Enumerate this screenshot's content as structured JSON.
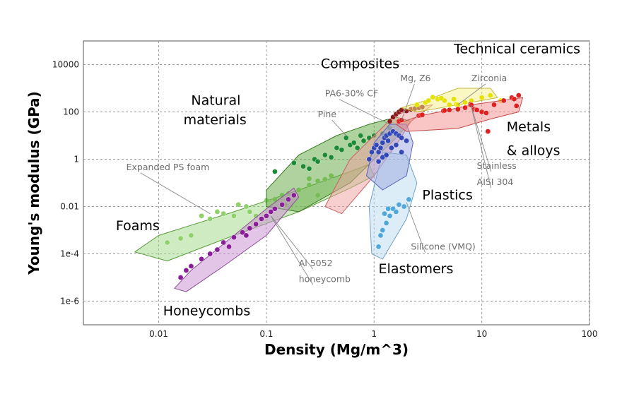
{
  "chart_data": {
    "type": "scatter",
    "xlabel": "Density (Mg/m^3)",
    "ylabel": "Young's modulus (GPa)",
    "x_scale": "log",
    "y_scale": "log",
    "xlim": [
      0.002,
      100
    ],
    "ylim": [
      1e-07,
      100000
    ],
    "grid": true,
    "x_ticks": [
      {
        "value": 0.01,
        "label": "0.01"
      },
      {
        "value": 0.1,
        "label": "0.1"
      },
      {
        "value": 1,
        "label": "1"
      },
      {
        "value": 10,
        "label": "10"
      },
      {
        "value": 100,
        "label": "100"
      }
    ],
    "y_ticks": [
      {
        "value": 10000,
        "label": "10000"
      },
      {
        "value": 100,
        "label": "100"
      },
      {
        "value": 1,
        "label": "1"
      },
      {
        "value": 0.01,
        "label": "0.01"
      },
      {
        "value": 0.0001,
        "label": "1e-4"
      },
      {
        "value": 1e-06,
        "label": "1e-6"
      }
    ],
    "families": [
      {
        "name": "Foams",
        "fill": "#9ed784",
        "stroke": "#5a9a3c",
        "point_color": "#8fd06b",
        "envelope": [
          [
            0.006,
            0.00012
          ],
          [
            0.01,
            0.0006
          ],
          [
            0.05,
            0.006
          ],
          [
            0.2,
            0.05
          ],
          [
            0.6,
            0.3
          ],
          [
            0.9,
            0.6
          ],
          [
            1.0,
            0.2
          ],
          [
            0.6,
            0.06
          ],
          [
            0.2,
            0.006
          ],
          [
            0.05,
            0.0006
          ],
          [
            0.012,
            5e-05
          ]
        ],
        "points": [
          [
            0.012,
            0.0003
          ],
          [
            0.016,
            0.00045
          ],
          [
            0.02,
            0.0006
          ],
          [
            0.025,
            0.004
          ],
          [
            0.03,
            0.003
          ],
          [
            0.035,
            0.006
          ],
          [
            0.04,
            0.005
          ],
          [
            0.05,
            0.004
          ],
          [
            0.055,
            0.012
          ],
          [
            0.065,
            0.01
          ],
          [
            0.07,
            0.006
          ],
          [
            0.08,
            0.004
          ],
          [
            0.09,
            0.003
          ],
          [
            0.1,
            0.018
          ],
          [
            0.12,
            0.02
          ],
          [
            0.14,
            0.03
          ],
          [
            0.16,
            0.035
          ],
          [
            0.2,
            0.05
          ],
          [
            0.25,
            0.08
          ],
          [
            0.3,
            0.12
          ],
          [
            0.35,
            0.14
          ],
          [
            0.4,
            0.2
          ],
          [
            0.25,
            0.15
          ],
          [
            0.15,
            0.012
          ],
          [
            0.3,
            0.03
          ]
        ]
      },
      {
        "name": "Natural materials",
        "fill": "#5ea83e",
        "stroke": "#3a7a25",
        "point_color": "#1c8a34",
        "envelope": [
          [
            0.1,
            0.05
          ],
          [
            0.2,
            1.5
          ],
          [
            0.45,
            10
          ],
          [
            0.9,
            30
          ],
          [
            1.6,
            60
          ],
          [
            2.2,
            40
          ],
          [
            1.6,
            8
          ],
          [
            1.0,
            1
          ],
          [
            0.6,
            0.1
          ],
          [
            0.2,
            0.006
          ],
          [
            0.1,
            0.01
          ]
        ],
        "points": [
          [
            0.12,
            0.3
          ],
          [
            0.18,
            0.7
          ],
          [
            0.22,
            0.5
          ],
          [
            0.28,
            1.0
          ],
          [
            0.35,
            1.5
          ],
          [
            0.4,
            1.2
          ],
          [
            0.45,
            3
          ],
          [
            0.5,
            2.5
          ],
          [
            0.6,
            4
          ],
          [
            0.65,
            5
          ],
          [
            0.7,
            3
          ],
          [
            0.8,
            6
          ],
          [
            0.9,
            8
          ],
          [
            1.0,
            10
          ],
          [
            1.2,
            12
          ],
          [
            1.4,
            20
          ],
          [
            0.3,
            0.8
          ],
          [
            0.25,
            0.4
          ],
          [
            0.55,
            8
          ],
          [
            0.75,
            10
          ]
        ]
      },
      {
        "name": "Composites",
        "fill": "#f2a0a0",
        "stroke": "#c76464",
        "point_color": "#8b1a1a",
        "envelope": [
          [
            0.35,
            0.01
          ],
          [
            0.6,
            1
          ],
          [
            1.0,
            10
          ],
          [
            1.5,
            60
          ],
          [
            2.3,
            150
          ],
          [
            3.5,
            200
          ],
          [
            2.2,
            40
          ],
          [
            1.6,
            4
          ],
          [
            1.0,
            0.2
          ],
          [
            0.5,
            0.005
          ]
        ],
        "points": [
          [
            1.4,
            40
          ],
          [
            1.5,
            60
          ],
          [
            1.6,
            80
          ],
          [
            1.7,
            100
          ],
          [
            1.8,
            120
          ],
          [
            2.0,
            110
          ],
          [
            2.2,
            130
          ],
          [
            2.4,
            140
          ],
          [
            2.6,
            150
          ],
          [
            2.8,
            160
          ]
        ]
      },
      {
        "name": "Honeycombs",
        "fill": "#c88bd0",
        "stroke": "#8c4f96",
        "point_color": "#8a1e99",
        "envelope": [
          [
            0.014,
            3.5e-06
          ],
          [
            0.02,
            2e-05
          ],
          [
            0.05,
            0.0006
          ],
          [
            0.1,
            0.008
          ],
          [
            0.18,
            0.06
          ],
          [
            0.2,
            0.025
          ],
          [
            0.1,
            0.0006
          ],
          [
            0.04,
            3e-05
          ],
          [
            0.018,
            2.5e-06
          ]
        ],
        "points": [
          [
            0.016,
            1e-05
          ],
          [
            0.018,
            2e-05
          ],
          [
            0.02,
            3e-05
          ],
          [
            0.025,
            6e-05
          ],
          [
            0.03,
            0.0001
          ],
          [
            0.035,
            0.00015
          ],
          [
            0.04,
            0.0003
          ],
          [
            0.05,
            0.0005
          ],
          [
            0.06,
            0.0008
          ],
          [
            0.07,
            0.0012
          ],
          [
            0.08,
            0.0018
          ],
          [
            0.09,
            0.003
          ],
          [
            0.1,
            0.004
          ],
          [
            0.12,
            0.008
          ],
          [
            0.14,
            0.012
          ],
          [
            0.16,
            0.02
          ],
          [
            0.18,
            0.03
          ],
          [
            0.045,
            0.0002
          ],
          [
            0.065,
            0.0006
          ],
          [
            0.11,
            0.006
          ]
        ]
      },
      {
        "name": "Elastomers",
        "fill": "#bcdcef",
        "stroke": "#6fa2c4",
        "point_color": "#4fa8d9",
        "envelope": [
          [
            0.95,
            0.0001
          ],
          [
            1.2,
            6e-05
          ],
          [
            2.0,
            0.003
          ],
          [
            2.5,
            0.1
          ],
          [
            2.0,
            1.5
          ],
          [
            1.2,
            2
          ],
          [
            0.9,
            0.01
          ]
        ],
        "points": [
          [
            1.1,
            0.0002
          ],
          [
            1.15,
            0.0006
          ],
          [
            1.2,
            0.001
          ],
          [
            1.3,
            0.002
          ],
          [
            1.4,
            0.004
          ],
          [
            1.5,
            0.008
          ],
          [
            1.6,
            0.006
          ],
          [
            1.7,
            0.012
          ],
          [
            1.9,
            0.01
          ],
          [
            2.1,
            0.02
          ],
          [
            1.25,
            0.005
          ],
          [
            1.35,
            0.008
          ]
        ]
      },
      {
        "name": "Plastics",
        "fill": "#9aa6e0",
        "stroke": "#5a68b8",
        "point_color": "#3346b8",
        "envelope": [
          [
            0.85,
            0.2
          ],
          [
            1.0,
            5
          ],
          [
            1.4,
            30
          ],
          [
            2.0,
            30
          ],
          [
            2.3,
            5
          ],
          [
            2.0,
            0.2
          ],
          [
            1.2,
            0.05
          ]
        ],
        "points": [
          [
            0.9,
            1
          ],
          [
            0.95,
            2
          ],
          [
            1.0,
            3
          ],
          [
            1.05,
            4
          ],
          [
            1.1,
            2
          ],
          [
            1.15,
            3
          ],
          [
            1.2,
            5
          ],
          [
            1.25,
            8
          ],
          [
            1.3,
            10
          ],
          [
            1.35,
            6
          ],
          [
            1.4,
            12
          ],
          [
            1.5,
            15
          ],
          [
            1.6,
            12
          ],
          [
            1.7,
            10
          ],
          [
            1.8,
            8
          ],
          [
            2.0,
            6
          ],
          [
            1.1,
            0.8
          ],
          [
            1.2,
            1.2
          ],
          [
            1.3,
            1.5
          ],
          [
            1.45,
            3
          ],
          [
            1.6,
            4
          ],
          [
            1.8,
            2
          ]
        ]
      },
      {
        "name": "Technical ceramics",
        "fill": "#f6ef88",
        "stroke": "#c4b83e",
        "point_color": "#e5e200",
        "envelope": [
          [
            1.8,
            150
          ],
          [
            3.0,
            300
          ],
          [
            6.0,
            1000
          ],
          [
            12,
            1000
          ],
          [
            14,
            400
          ],
          [
            6,
            200
          ],
          [
            2.5,
            100
          ]
        ],
        "points": [
          [
            2.5,
            200
          ],
          [
            3.0,
            250
          ],
          [
            3.2,
            300
          ],
          [
            3.9,
            350
          ],
          [
            4.5,
            300
          ],
          [
            5.0,
            200
          ],
          [
            5.8,
            210
          ],
          [
            6.0,
            200
          ],
          [
            7.0,
            250
          ],
          [
            8.0,
            300
          ],
          [
            10,
            400
          ],
          [
            12,
            500
          ],
          [
            15,
            300
          ],
          [
            3.5,
            420
          ],
          [
            4.2,
            380
          ],
          [
            5.5,
            350
          ]
        ]
      },
      {
        "name": "Metals & alloys",
        "fill": "#f38c8c",
        "stroke": "#c34848",
        "point_color": "#e02020",
        "envelope": [
          [
            1.6,
            30
          ],
          [
            2.7,
            70
          ],
          [
            4.5,
            110
          ],
          [
            8,
            200
          ],
          [
            15,
            300
          ],
          [
            24,
            400
          ],
          [
            22,
            100
          ],
          [
            12,
            50
          ],
          [
            6,
            20
          ],
          [
            2,
            15
          ]
        ],
        "points": [
          [
            1.7,
            40
          ],
          [
            1.8,
            45
          ],
          [
            2.6,
            70
          ],
          [
            2.7,
            72
          ],
          [
            2.8,
            75
          ],
          [
            4.4,
            110
          ],
          [
            4.5,
            115
          ],
          [
            5.0,
            120
          ],
          [
            6.0,
            130
          ],
          [
            7.0,
            150
          ],
          [
            7.8,
            200
          ],
          [
            7.9,
            210
          ],
          [
            8.0,
            195
          ],
          [
            8.5,
            130
          ],
          [
            8.9,
            125
          ],
          [
            9.0,
            120
          ],
          [
            10,
            100
          ],
          [
            11,
            90
          ],
          [
            11.4,
            15
          ],
          [
            13,
            200
          ],
          [
            16,
            300
          ],
          [
            19,
            400
          ],
          [
            20,
            350
          ],
          [
            21,
            180
          ],
          [
            22,
            500
          ]
        ]
      }
    ],
    "family_labels": [
      {
        "text": "Technical ceramics",
        "x": 5.5,
        "y": 30000
      },
      {
        "text": "Composites",
        "x": 0.32,
        "y": 7000
      },
      {
        "text": "Natural",
        "x": 0.02,
        "y": 200
      },
      {
        "text": "materials",
        "x": 0.017,
        "y": 30
      },
      {
        "text": "Metals",
        "x": 17,
        "y": 15
      },
      {
        "text": "& alloys",
        "x": 17,
        "y": 1.5
      },
      {
        "text": "Plastics",
        "x": 2.8,
        "y": 0.02
      },
      {
        "text": "Foams",
        "x": 0.004,
        "y": 0.001
      },
      {
        "text": "Elastomers",
        "x": 1.1,
        "y": 1.5e-05
      },
      {
        "text": "Honeycombs",
        "x": 0.011,
        "y": 2.5e-07
      }
    ],
    "annotations": [
      {
        "text": "Mg, Z6",
        "x": 1.75,
        "y": 2000,
        "point": [
          1.8,
          45
        ]
      },
      {
        "text": "Zirconia",
        "x": 8,
        "y": 2000,
        "point": [
          6.0,
          200
        ]
      },
      {
        "text": "PA6-30% CF",
        "x": 0.35,
        "y": 450,
        "point": [
          1.4,
          30
        ]
      },
      {
        "text": "Pine",
        "x": 0.3,
        "y": 60,
        "point": [
          0.55,
          10
        ]
      },
      {
        "text": "Expanded PS foam",
        "x": 0.005,
        "y": 0.35,
        "point": [
          0.03,
          0.005
        ]
      },
      {
        "text": "Stainless",
        "x": 9,
        "y": 0.4,
        "point": [
          7.9,
          200
        ]
      },
      {
        "text": "AISI 304",
        "x": 9,
        "y": 0.08,
        "point": [
          7.9,
          200
        ]
      },
      {
        "text": "Silicone (VMQ)",
        "x": 2.2,
        "y": 0.00015,
        "point": [
          2.0,
          0.015
        ]
      },
      {
        "text": "Al 5052",
        "x": 0.2,
        "y": 3e-05,
        "point": [
          0.11,
          0.004
        ]
      },
      {
        "text": "honeycomb",
        "x": 0.2,
        "y": 6.5e-06,
        "point": [
          0.11,
          0.004
        ]
      }
    ]
  }
}
